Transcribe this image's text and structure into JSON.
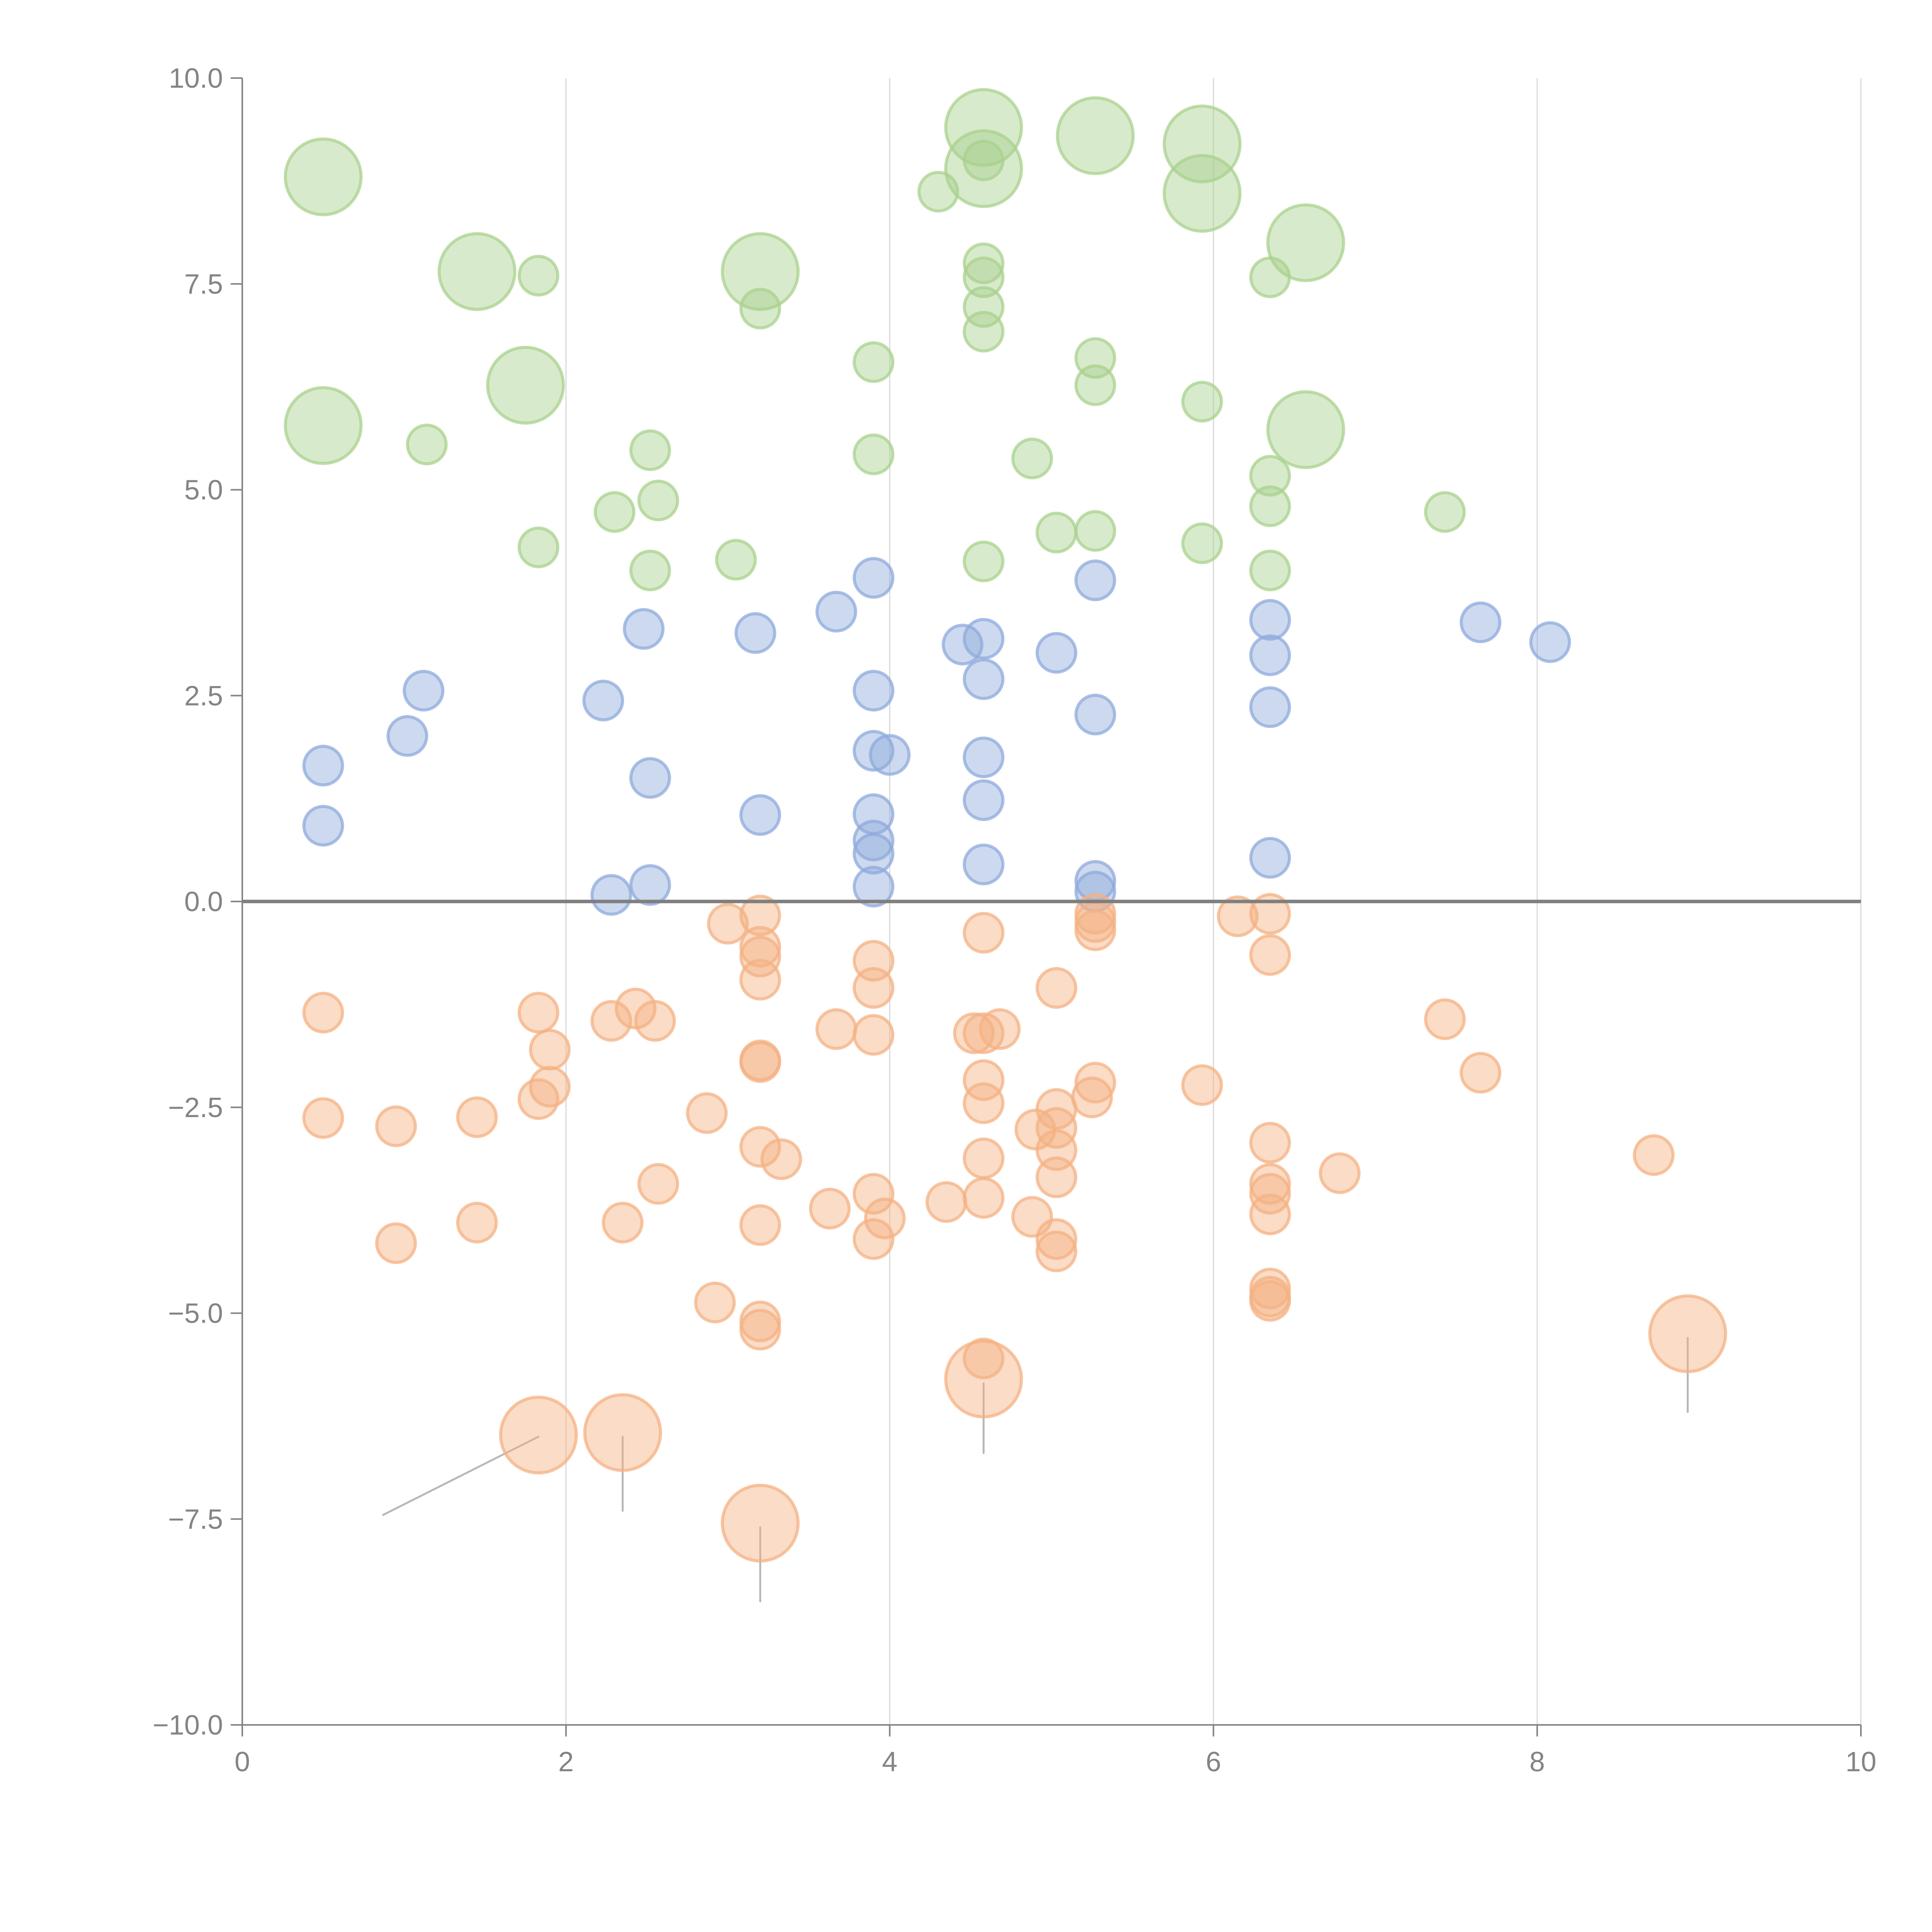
{
  "chart_data": {
    "type": "scatter",
    "subtype": "bubble",
    "title": "",
    "xlabel": "",
    "ylabel": "",
    "xlim": [
      0,
      10
    ],
    "ylim": [
      -10,
      10
    ],
    "x_ticks": [
      "0",
      "2",
      "4",
      "6",
      "8",
      "10"
    ],
    "x_tick_values": [
      0,
      2,
      4,
      6,
      8,
      10
    ],
    "y_ticks": [
      "10.0",
      "7.5",
      "5.0",
      "2.5",
      "0.0",
      "−2.5",
      "−5.0",
      "−7.5",
      "−10.0"
    ],
    "y_tick_values": [
      10,
      7.5,
      5,
      2.5,
      0,
      -2.5,
      -5,
      -7.5,
      -10
    ],
    "grid": "vertical",
    "legend": "none",
    "series": [
      {
        "name": "green",
        "color": "#a9d18e",
        "points": [
          [
            0.5,
            8.8,
            2
          ],
          [
            1.45,
            7.65,
            2
          ],
          [
            1.83,
            7.6,
            1
          ],
          [
            3.2,
            7.65,
            2
          ],
          [
            3.2,
            7.2,
            1
          ],
          [
            4.3,
            8.62,
            1
          ],
          [
            4.58,
            9.4,
            2
          ],
          [
            4.58,
            8.9,
            2
          ],
          [
            4.58,
            9.0,
            1
          ],
          [
            5.27,
            9.3,
            2
          ],
          [
            5.93,
            9.2,
            2
          ],
          [
            5.93,
            8.6,
            2
          ],
          [
            6.57,
            8.0,
            2
          ],
          [
            6.35,
            7.58,
            1
          ],
          [
            4.58,
            7.75,
            1
          ],
          [
            4.58,
            7.58,
            1
          ],
          [
            4.58,
            7.22,
            1
          ],
          [
            4.58,
            6.92,
            1
          ],
          [
            3.9,
            6.55,
            1
          ],
          [
            5.27,
            6.6,
            1
          ],
          [
            5.27,
            6.27,
            1
          ],
          [
            5.93,
            6.07,
            1
          ],
          [
            0.5,
            5.78,
            2
          ],
          [
            1.75,
            6.27,
            2
          ],
          [
            1.14,
            5.55,
            1
          ],
          [
            2.52,
            5.48,
            1
          ],
          [
            3.9,
            5.43,
            1
          ],
          [
            4.88,
            5.38,
            1
          ],
          [
            6.57,
            5.73,
            2
          ],
          [
            6.35,
            5.17,
            1
          ],
          [
            6.35,
            4.8,
            1
          ],
          [
            2.3,
            4.73,
            1
          ],
          [
            2.57,
            4.87,
            1
          ],
          [
            1.83,
            4.3,
            1
          ],
          [
            2.52,
            4.02,
            1
          ],
          [
            3.05,
            4.15,
            1
          ],
          [
            4.58,
            4.13,
            1
          ],
          [
            5.03,
            4.48,
            1
          ],
          [
            5.27,
            4.5,
            1
          ],
          [
            5.93,
            4.35,
            1
          ],
          [
            6.35,
            4.02,
            1
          ],
          [
            7.43,
            4.73,
            1
          ]
        ]
      },
      {
        "name": "blue",
        "color": "#8faadc",
        "points": [
          [
            0.5,
            1.65,
            1
          ],
          [
            0.5,
            0.92,
            1
          ],
          [
            1.02,
            2.01,
            1
          ],
          [
            1.12,
            2.56,
            1
          ],
          [
            2.23,
            2.44,
            1
          ],
          [
            2.48,
            3.31,
            1
          ],
          [
            2.52,
            1.5,
            1
          ],
          [
            2.28,
            0.08,
            1
          ],
          [
            2.52,
            0.2,
            1
          ],
          [
            3.17,
            3.26,
            1
          ],
          [
            3.2,
            1.05,
            1
          ],
          [
            3.67,
            3.52,
            1
          ],
          [
            3.9,
            3.93,
            1
          ],
          [
            3.9,
            2.56,
            1
          ],
          [
            3.9,
            1.83,
            1
          ],
          [
            4.0,
            1.78,
            1
          ],
          [
            3.9,
            1.06,
            1
          ],
          [
            3.9,
            0.74,
            1
          ],
          [
            3.9,
            0.58,
            1
          ],
          [
            3.9,
            0.18,
            1
          ],
          [
            4.45,
            3.12,
            1
          ],
          [
            4.58,
            3.19,
            1
          ],
          [
            4.58,
            2.7,
            1
          ],
          [
            4.58,
            1.75,
            1
          ],
          [
            4.58,
            1.23,
            1
          ],
          [
            4.58,
            0.45,
            1
          ],
          [
            5.03,
            3.02,
            1
          ],
          [
            5.27,
            3.9,
            1
          ],
          [
            5.27,
            2.27,
            1
          ],
          [
            5.27,
            0.25,
            1
          ],
          [
            5.27,
            0.12,
            1
          ],
          [
            6.35,
            3.42,
            1
          ],
          [
            6.35,
            2.99,
            1
          ],
          [
            6.35,
            2.36,
            1
          ],
          [
            6.35,
            0.53,
            1
          ],
          [
            7.65,
            3.39,
            1
          ],
          [
            8.08,
            3.15,
            1
          ]
        ]
      },
      {
        "name": "orange",
        "color": "#f4b183",
        "points": [
          [
            0.5,
            -1.35,
            1
          ],
          [
            0.5,
            -2.63,
            1
          ],
          [
            0.95,
            -2.73,
            1
          ],
          [
            0.95,
            -4.15,
            1
          ],
          [
            1.45,
            -2.62,
            1
          ],
          [
            1.45,
            -3.9,
            1
          ],
          [
            1.83,
            -1.35,
            1
          ],
          [
            1.9,
            -1.8,
            1
          ],
          [
            1.9,
            -2.25,
            1
          ],
          [
            1.83,
            -2.4,
            1
          ],
          [
            2.28,
            -1.45,
            1
          ],
          [
            2.43,
            -1.3,
            1
          ],
          [
            2.55,
            -1.45,
            1
          ],
          [
            2.35,
            -3.9,
            1
          ],
          [
            2.57,
            -3.43,
            1
          ],
          [
            2.87,
            -2.57,
            1
          ],
          [
            2.92,
            -4.87,
            1
          ],
          [
            3.0,
            -0.27,
            1
          ],
          [
            3.2,
            -0.17,
            1
          ],
          [
            3.2,
            -0.55,
            1
          ],
          [
            3.2,
            -0.67,
            1
          ],
          [
            3.2,
            -0.95,
            1
          ],
          [
            3.2,
            -1.93,
            1
          ],
          [
            3.2,
            -1.95,
            1
          ],
          [
            3.2,
            -2.98,
            1
          ],
          [
            3.33,
            -3.13,
            1
          ],
          [
            3.2,
            -3.93,
            1
          ],
          [
            3.2,
            -5.1,
            1
          ],
          [
            3.2,
            -5.2,
            1
          ],
          [
            3.63,
            -3.73,
            1
          ],
          [
            3.67,
            -1.55,
            1
          ],
          [
            3.9,
            -0.72,
            1
          ],
          [
            3.9,
            -1.05,
            1
          ],
          [
            3.9,
            -1.62,
            1
          ],
          [
            3.9,
            -3.55,
            1
          ],
          [
            3.97,
            -3.85,
            1
          ],
          [
            3.9,
            -4.1,
            1
          ],
          [
            4.35,
            -3.65,
            1
          ],
          [
            4.52,
            -1.6,
            1
          ],
          [
            4.58,
            -1.6,
            1
          ],
          [
            4.68,
            -1.55,
            1
          ],
          [
            4.58,
            -0.38,
            1
          ],
          [
            4.58,
            -2.17,
            1
          ],
          [
            4.58,
            -2.45,
            1
          ],
          [
            4.58,
            -3.12,
            1
          ],
          [
            4.58,
            -3.6,
            1
          ],
          [
            4.58,
            -5.55,
            1
          ],
          [
            4.88,
            -3.83,
            1
          ],
          [
            4.9,
            -2.77,
            1
          ],
          [
            5.03,
            -1.05,
            1
          ],
          [
            5.03,
            -2.52,
            1
          ],
          [
            5.03,
            -2.75,
            1
          ],
          [
            5.03,
            -3.02,
            1
          ],
          [
            5.03,
            -3.35,
            1
          ],
          [
            5.03,
            -4.1,
            1
          ],
          [
            5.03,
            -4.25,
            1
          ],
          [
            5.25,
            -2.38,
            1
          ],
          [
            5.27,
            -2.2,
            1
          ],
          [
            5.27,
            -0.15,
            1
          ],
          [
            5.27,
            -0.25,
            1
          ],
          [
            5.27,
            -0.35,
            1
          ],
          [
            5.93,
            -2.23,
            1
          ],
          [
            6.15,
            -0.18,
            1
          ],
          [
            6.35,
            -0.15,
            1
          ],
          [
            6.35,
            -0.65,
            1
          ],
          [
            6.35,
            -2.93,
            1
          ],
          [
            6.35,
            -3.43,
            1
          ],
          [
            6.35,
            -3.55,
            1
          ],
          [
            6.35,
            -3.8,
            1
          ],
          [
            6.35,
            -4.7,
            1
          ],
          [
            6.35,
            -4.8,
            1
          ],
          [
            6.35,
            -4.85,
            1
          ],
          [
            6.78,
            -3.3,
            1
          ],
          [
            7.43,
            -1.43,
            1
          ],
          [
            7.65,
            -2.08,
            1
          ],
          [
            8.72,
            -3.08,
            1
          ],
          [
            1.83,
            -6.48,
            2
          ],
          [
            2.35,
            -6.45,
            2
          ],
          [
            3.2,
            -7.55,
            2
          ],
          [
            4.58,
            -5.8,
            2
          ],
          [
            8.93,
            -5.25,
            2
          ]
        ]
      }
    ],
    "annotations": [
      {
        "from": [
          1.83,
          -6.5
        ],
        "to": [
          0.87,
          -7.45
        ]
      },
      {
        "from": [
          2.35,
          -6.5
        ],
        "to": [
          2.35,
          -7.4
        ]
      },
      {
        "from": [
          3.2,
          -7.6
        ],
        "to": [
          3.2,
          -8.5
        ]
      },
      {
        "from": [
          4.58,
          -5.85
        ],
        "to": [
          4.58,
          -6.7
        ]
      },
      {
        "from": [
          8.93,
          -5.3
        ],
        "to": [
          8.93,
          -6.2
        ]
      }
    ]
  }
}
